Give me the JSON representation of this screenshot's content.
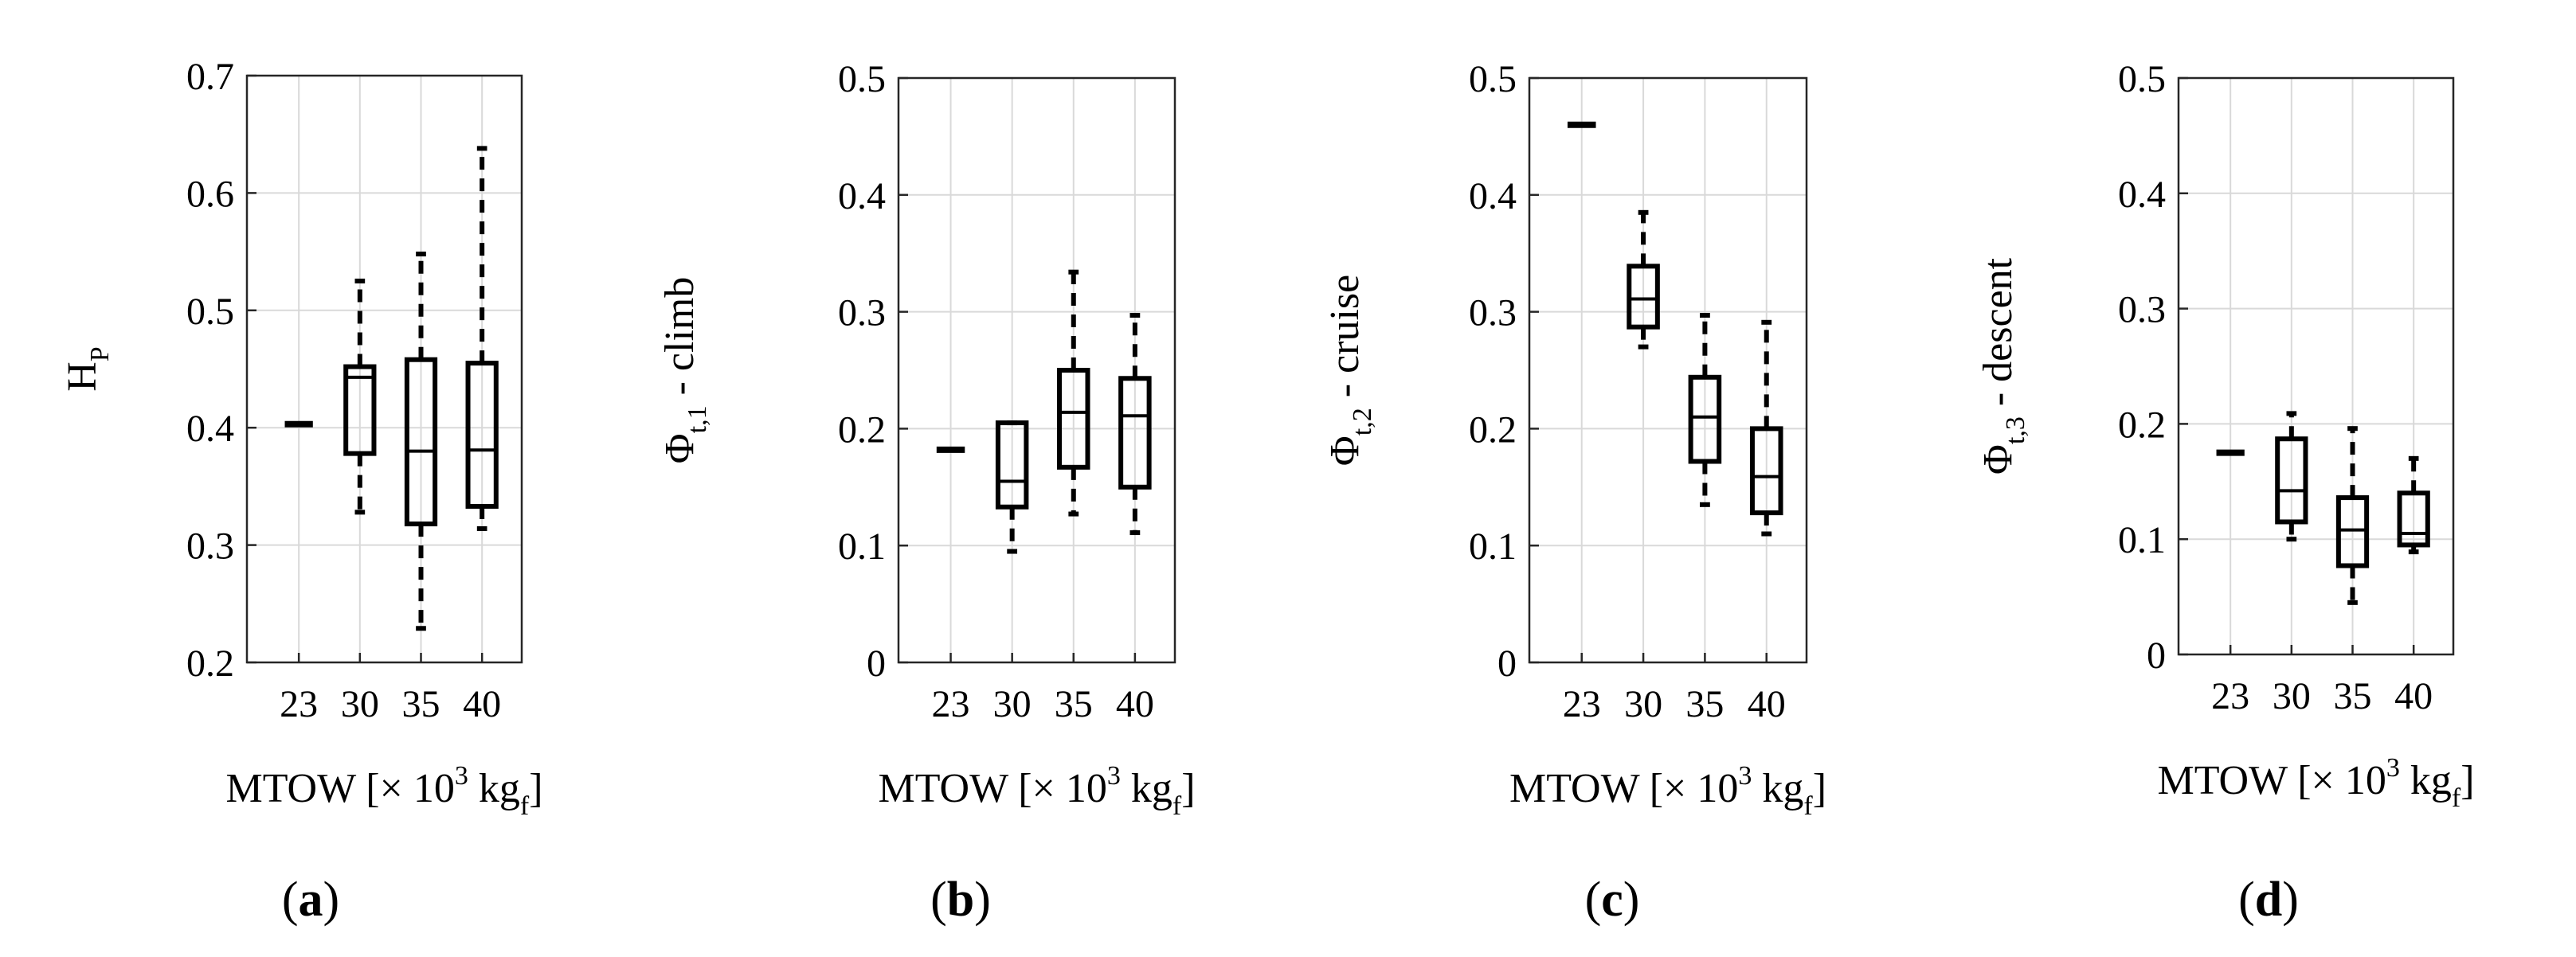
{
  "chart_data": [
    {
      "type": "box",
      "panel": "(a)",
      "ylabel": "H",
      "ylabel_sub": "P",
      "ylabel_suffix": "",
      "xlabel_main": "MTOW [× 10",
      "xlabel_sup": "3",
      "xlabel_unit": " kg",
      "xlabel_sub": "f",
      "xlabel_close": "]",
      "ylim": [
        0.2,
        0.7
      ],
      "yticks": [
        0.2,
        0.3,
        0.4,
        0.5,
        0.6,
        0.7
      ],
      "ytick_labels": [
        "0.2",
        "0.3",
        "0.4",
        "0.5",
        "0.6",
        "0.7"
      ],
      "categories": [
        "23",
        "30",
        "35",
        "40"
      ],
      "boxes": [
        {
          "min": 0.403,
          "q1": 0.403,
          "median": 0.403,
          "q3": 0.403,
          "max": 0.403
        },
        {
          "min": 0.328,
          "q1": 0.378,
          "median": 0.443,
          "q3": 0.452,
          "max": 0.525
        },
        {
          "min": 0.229,
          "q1": 0.318,
          "median": 0.38,
          "q3": 0.458,
          "max": 0.548
        },
        {
          "min": 0.314,
          "q1": 0.333,
          "median": 0.381,
          "q3": 0.455,
          "max": 0.638
        }
      ]
    },
    {
      "type": "box",
      "panel": "(b)",
      "ylabel": "Φ",
      "ylabel_sub": "t,1",
      "ylabel_suffix": " - climb",
      "xlabel_main": "MTOW [× 10",
      "xlabel_sup": "3",
      "xlabel_unit": " kg",
      "xlabel_sub": "f",
      "xlabel_close": "]",
      "ylim": [
        0,
        0.5
      ],
      "yticks": [
        0,
        0.1,
        0.2,
        0.3,
        0.4,
        0.5
      ],
      "ytick_labels": [
        "0",
        "0.1",
        "0.2",
        "0.3",
        "0.4",
        "0.5"
      ],
      "categories": [
        "23",
        "30",
        "35",
        "40"
      ],
      "boxes": [
        {
          "min": 0.182,
          "q1": 0.182,
          "median": 0.182,
          "q3": 0.182,
          "max": 0.182
        },
        {
          "min": 0.095,
          "q1": 0.133,
          "median": 0.155,
          "q3": 0.205,
          "max": 0.205
        },
        {
          "min": 0.127,
          "q1": 0.167,
          "median": 0.214,
          "q3": 0.25,
          "max": 0.334
        },
        {
          "min": 0.111,
          "q1": 0.15,
          "median": 0.211,
          "q3": 0.243,
          "max": 0.297
        }
      ]
    },
    {
      "type": "box",
      "panel": "(c)",
      "ylabel": "Φ",
      "ylabel_sub": "t,2",
      "ylabel_suffix": " - cruise",
      "xlabel_main": "MTOW [× 10",
      "xlabel_sup": "3",
      "xlabel_unit": " kg",
      "xlabel_sub": "f",
      "xlabel_close": "]",
      "ylim": [
        0,
        0.5
      ],
      "yticks": [
        0,
        0.1,
        0.2,
        0.3,
        0.4,
        0.5
      ],
      "ytick_labels": [
        "0",
        "0.1",
        "0.2",
        "0.3",
        "0.4",
        "0.5"
      ],
      "categories": [
        "23",
        "30",
        "35",
        "40"
      ],
      "boxes": [
        {
          "min": 0.46,
          "q1": 0.46,
          "median": 0.46,
          "q3": 0.46,
          "max": 0.46
        },
        {
          "min": 0.27,
          "q1": 0.287,
          "median": 0.311,
          "q3": 0.339,
          "max": 0.385
        },
        {
          "min": 0.135,
          "q1": 0.172,
          "median": 0.21,
          "q3": 0.244,
          "max": 0.297
        },
        {
          "min": 0.11,
          "q1": 0.128,
          "median": 0.159,
          "q3": 0.2,
          "max": 0.291
        }
      ]
    },
    {
      "type": "box",
      "panel": "(d)",
      "ylabel": "Φ",
      "ylabel_sub": "t,3",
      "ylabel_suffix": " - descent",
      "xlabel_main": "MTOW [× 10",
      "xlabel_sup": "3",
      "xlabel_unit": " kg",
      "xlabel_sub": "f",
      "xlabel_close": "]",
      "ylim": [
        0,
        0.5
      ],
      "yticks": [
        0,
        0.1,
        0.2,
        0.3,
        0.4,
        0.5
      ],
      "ytick_labels": [
        "0",
        "0.1",
        "0.2",
        "0.3",
        "0.4",
        "0.5"
      ],
      "categories": [
        "23",
        "30",
        "35",
        "40"
      ],
      "boxes": [
        {
          "min": 0.175,
          "q1": 0.175,
          "median": 0.175,
          "q3": 0.175,
          "max": 0.175
        },
        {
          "min": 0.1,
          "q1": 0.115,
          "median": 0.142,
          "q3": 0.187,
          "max": 0.209
        },
        {
          "min": 0.045,
          "q1": 0.077,
          "median": 0.108,
          "q3": 0.136,
          "max": 0.196
        },
        {
          "min": 0.089,
          "q1": 0.095,
          "median": 0.105,
          "q3": 0.14,
          "max": 0.17
        }
      ]
    }
  ]
}
